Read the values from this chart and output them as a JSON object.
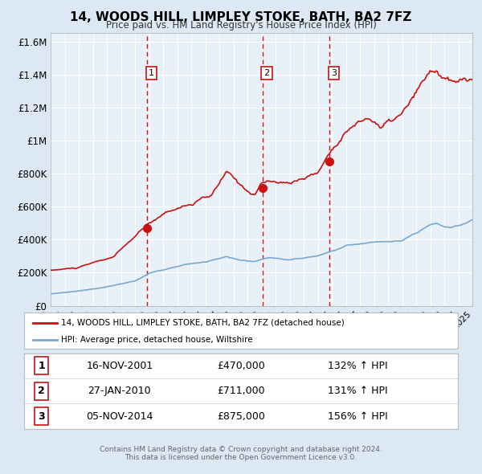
{
  "title": "14, WOODS HILL, LIMPLEY STOKE, BATH, BA2 7FZ",
  "subtitle": "Price paid vs. HM Land Registry's House Price Index (HPI)",
  "x_start_year": 1995,
  "x_end_year": 2025,
  "ylim": [
    0,
    1650000
  ],
  "yticks": [
    0,
    200000,
    400000,
    600000,
    800000,
    1000000,
    1200000,
    1400000,
    1600000
  ],
  "ytick_labels": [
    "£0",
    "£200K",
    "£400K",
    "£600K",
    "£800K",
    "£1M",
    "£1.2M",
    "£1.4M",
    "£1.6M"
  ],
  "sale_markers": [
    {
      "label": "1",
      "date_num": 2001.88,
      "price": 470000
    },
    {
      "label": "2",
      "date_num": 2010.07,
      "price": 711000
    },
    {
      "label": "3",
      "date_num": 2014.84,
      "price": 875000
    }
  ],
  "vline_dates": [
    2001.88,
    2010.07,
    2014.84
  ],
  "legend_entries": [
    {
      "label": "14, WOODS HILL, LIMPLEY STOKE, BATH, BA2 7FZ (detached house)",
      "color": "#cc0000"
    },
    {
      "label": "HPI: Average price, detached house, Wiltshire",
      "color": "#7aa8d0"
    }
  ],
  "table_rows": [
    {
      "num": "1",
      "date": "16-NOV-2001",
      "price": "£470,000",
      "hpi": "132% ↑ HPI"
    },
    {
      "num": "2",
      "date": "27-JAN-2010",
      "price": "£711,000",
      "hpi": "131% ↑ HPI"
    },
    {
      "num": "3",
      "date": "05-NOV-2014",
      "price": "£875,000",
      "hpi": "156% ↑ HPI"
    }
  ],
  "footer": "Contains HM Land Registry data © Crown copyright and database right 2024.\nThis data is licensed under the Open Government Licence v3.0.",
  "bg_color": "#dce9f5",
  "plot_bg_color": "#e8f0f8",
  "grid_color": "#ffffff",
  "red_line_color": "#cc1111",
  "blue_line_color": "#7aa8d0"
}
